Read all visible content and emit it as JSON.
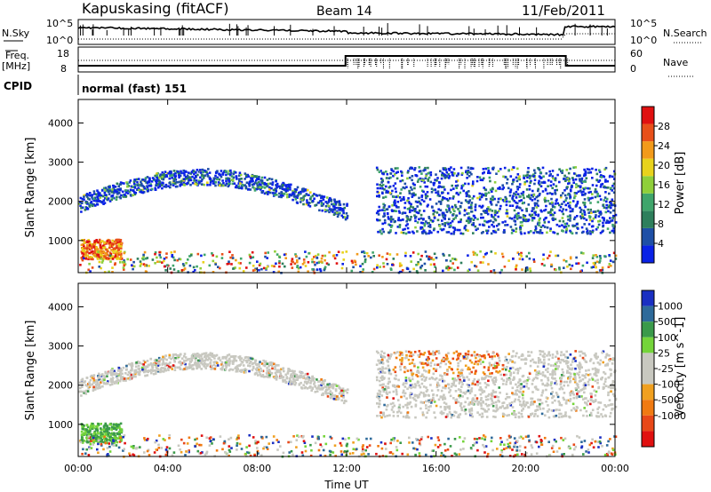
{
  "header": {
    "station": "Kapuskasing (fitACF)",
    "beam": "Beam 14",
    "date": "11/Feb/2011"
  },
  "noise_panel": {
    "left_label": "N.Sky",
    "right_label": "N.Search",
    "left_ticks": [
      "10^5",
      "10^0"
    ],
    "right_ticks": [
      "10^5",
      "10^0"
    ]
  },
  "freq_panel": {
    "left_label_1": "Freq.",
    "left_label_2": "[MHz]",
    "right_label": "Nave",
    "left_ticks": [
      "18",
      "8"
    ],
    "right_ticks": [
      "60",
      "0"
    ]
  },
  "cpid": {
    "label": "CPID",
    "value": "normal (fast) 151"
  },
  "x_axis": {
    "label": "Time UT",
    "ticks": [
      "00:00",
      "04:00",
      "08:00",
      "12:00",
      "16:00",
      "20:00",
      "00:00"
    ]
  },
  "colors": {
    "power_scale": [
      "#0a22e6",
      "#1e4fa6",
      "#2e7f5c",
      "#3fa56b",
      "#8fcf3a",
      "#e8d21c",
      "#f29a1a",
      "#e8501a",
      "#e01010"
    ],
    "velocity_scale": [
      "#1a2fc2",
      "#2e6a9a",
      "#3a9a4a",
      "#74d43a",
      "#c8c8c0",
      "#c8c8c0",
      "#f0a020",
      "#f07a12",
      "#e84818",
      "#e01010"
    ]
  },
  "chart_data": [
    {
      "type": "heatmap",
      "title": "Power",
      "xlabel": "Time UT",
      "ylabel": "Slant Range [km]",
      "xlim": [
        0,
        24
      ],
      "ylim": [
        180,
        4600
      ],
      "yticks": [
        "1000",
        "2000",
        "3000",
        "4000"
      ],
      "colorbar": {
        "label": "Power [dB]",
        "ticks": [
          "4",
          "8",
          "12",
          "16",
          "20",
          "24",
          "28"
        ]
      },
      "regions": [
        {
          "t_start": 0.1,
          "t_end": 1.9,
          "range_low": 550,
          "range_high": 1050,
          "value_db": 22
        },
        {
          "t_start": 0.0,
          "t_end": 12.0,
          "range_low": 1500,
          "range_high": 3200,
          "value_db": 8
        },
        {
          "t_start": 13.3,
          "t_end": 24.0,
          "range_low": 1200,
          "range_high": 2900,
          "value_db": 10
        }
      ]
    },
    {
      "type": "heatmap",
      "title": "Velocity",
      "xlabel": "Time UT",
      "ylabel": "Slant Range [km]",
      "xlim": [
        0,
        24
      ],
      "ylim": [
        180,
        4600
      ],
      "yticks": [
        "1000",
        "2000",
        "3000",
        "4000"
      ],
      "colorbar": {
        "label": "Velocity [m s^-1]",
        "ticks": [
          "1000",
          "500",
          "100",
          "25",
          "-25",
          "-100",
          "-500",
          "-1000"
        ]
      },
      "regions": [
        {
          "t_start": 0.1,
          "t_end": 1.9,
          "range_low": 550,
          "range_high": 1400,
          "value_ms": 150
        },
        {
          "t_start": 0.0,
          "t_end": 12.0,
          "range_low": 1500,
          "range_high": 3200,
          "value_ms": 0
        },
        {
          "t_start": 14.0,
          "t_end": 19.0,
          "range_low": 2300,
          "range_high": 2900,
          "value_ms": -400
        },
        {
          "t_start": 13.3,
          "t_end": 24.0,
          "range_low": 1200,
          "range_high": 2400,
          "value_ms": 0
        }
      ]
    }
  ]
}
